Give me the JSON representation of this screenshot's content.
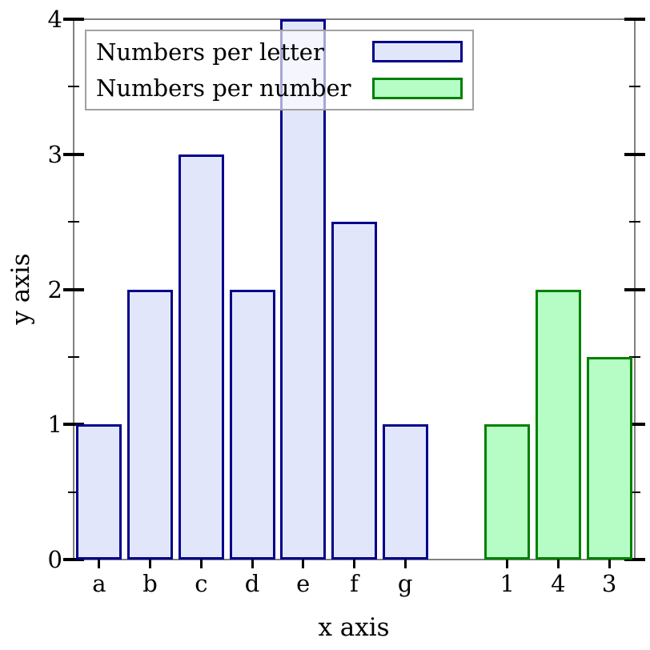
{
  "figure": {
    "x_axis_label": "x axis",
    "y_axis_label": "y axis"
  },
  "legend": {
    "position": "top-left",
    "entries": [
      {
        "label": "Numbers per letter",
        "fill": "#e2e6fa",
        "edge": "#00008b"
      },
      {
        "label": "Numbers per number",
        "fill": "#b5fcc5",
        "edge": "#008000"
      }
    ]
  },
  "chart_data": {
    "type": "bar",
    "title": "",
    "xlabel": "x axis",
    "ylabel": "y axis",
    "ylim": [
      0,
      4
    ],
    "y_major_ticks": [
      "0",
      "1",
      "2",
      "3",
      "4"
    ],
    "y_minor_ticks": [
      0.5,
      1.5,
      2.5,
      3.5
    ],
    "grid": false,
    "legend_position": "top-left",
    "total_slots": 11,
    "series": [
      {
        "name": "Numbers per letter",
        "categories": [
          "a",
          "b",
          "c",
          "d",
          "e",
          "f",
          "g"
        ],
        "values": [
          1,
          2,
          3,
          2,
          4,
          2.5,
          1
        ],
        "first_slot": 0,
        "fill": "#e2e6fa",
        "edge": "#00008b"
      },
      {
        "name": "Numbers per number",
        "categories": [
          "1",
          "4",
          "3"
        ],
        "values": [
          1,
          2,
          1.5
        ],
        "first_slot": 8,
        "fill": "#b5fcc5",
        "edge": "#008000"
      }
    ],
    "colors": {
      "spine": "#808080",
      "tick": "#000000",
      "text": "#000000",
      "legend_border": "#a0a0a0"
    }
  }
}
